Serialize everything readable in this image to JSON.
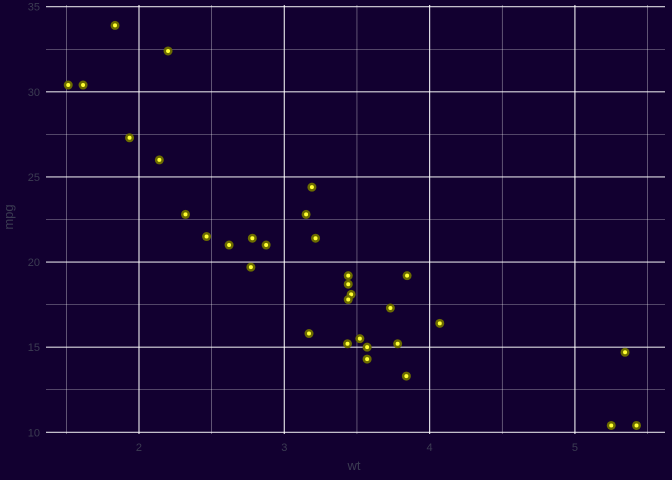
{
  "chart_data": {
    "type": "scatter",
    "title": "",
    "xlabel": "wt",
    "ylabel": "mpg",
    "xlim": [
      1.36,
      5.62
    ],
    "ylim": [
      9.9,
      35.1
    ],
    "x_ticks": [
      2,
      3,
      4,
      5
    ],
    "y_ticks": [
      10,
      15,
      20,
      25,
      30,
      35
    ],
    "x_minor": [
      1.5,
      2.5,
      3.5,
      4.5,
      5.5
    ],
    "y_minor": [
      12.5,
      17.5,
      22.5,
      27.5,
      32.5
    ],
    "grid": true,
    "colors": {
      "background": "#120030",
      "grid": "#ffffff",
      "point_outer": "#6b6b00",
      "point_inner": "#ffff33",
      "text": "#3b3b52"
    },
    "points": [
      {
        "x": 2.62,
        "y": 21.0
      },
      {
        "x": 2.875,
        "y": 21.0
      },
      {
        "x": 2.32,
        "y": 22.8
      },
      {
        "x": 3.215,
        "y": 21.4
      },
      {
        "x": 3.44,
        "y": 18.7
      },
      {
        "x": 3.46,
        "y": 18.1
      },
      {
        "x": 3.57,
        "y": 14.3
      },
      {
        "x": 3.19,
        "y": 24.4
      },
      {
        "x": 3.15,
        "y": 22.8
      },
      {
        "x": 3.44,
        "y": 19.2
      },
      {
        "x": 3.44,
        "y": 17.8
      },
      {
        "x": 4.07,
        "y": 16.4
      },
      {
        "x": 3.73,
        "y": 17.3
      },
      {
        "x": 3.78,
        "y": 15.2
      },
      {
        "x": 5.25,
        "y": 10.4
      },
      {
        "x": 5.424,
        "y": 10.4
      },
      {
        "x": 5.345,
        "y": 14.7
      },
      {
        "x": 2.2,
        "y": 32.4
      },
      {
        "x": 1.615,
        "y": 30.4
      },
      {
        "x": 1.835,
        "y": 33.9
      },
      {
        "x": 2.465,
        "y": 21.5
      },
      {
        "x": 3.52,
        "y": 15.5
      },
      {
        "x": 3.435,
        "y": 15.2
      },
      {
        "x": 3.84,
        "y": 13.3
      },
      {
        "x": 3.845,
        "y": 19.2
      },
      {
        "x": 1.935,
        "y": 27.3
      },
      {
        "x": 2.14,
        "y": 26.0
      },
      {
        "x": 1.513,
        "y": 30.4
      },
      {
        "x": 3.17,
        "y": 15.8
      },
      {
        "x": 2.77,
        "y": 19.7
      },
      {
        "x": 3.57,
        "y": 15.0
      },
      {
        "x": 2.78,
        "y": 21.4
      }
    ]
  }
}
